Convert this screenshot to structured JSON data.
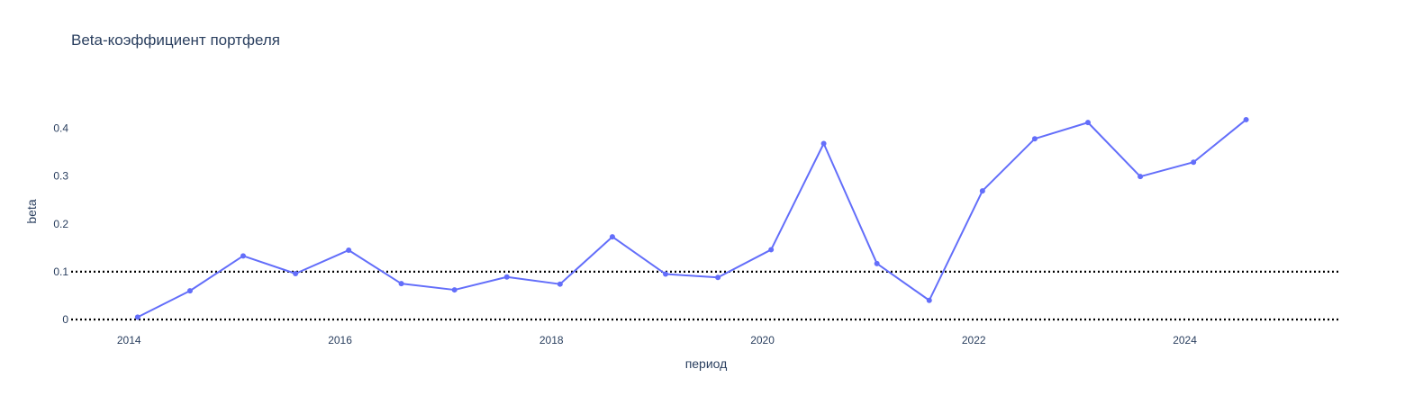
{
  "chart_data": {
    "type": "line",
    "title": "Beta-коэффициент портфеля",
    "xlabel": "период",
    "ylabel": "beta",
    "x_ticks": [
      "2014",
      "2016",
      "2018",
      "2020",
      "2022",
      "2024"
    ],
    "y_ticks": [
      "0",
      "0.1",
      "0.2",
      "0.3",
      "0.4"
    ],
    "xlim": [
      "2013-06-15",
      "2025-06-15"
    ],
    "ylim": [
      0,
      0.48
    ],
    "grid": false,
    "reference_lines": [
      {
        "value": 0.1,
        "style": "dotted",
        "color": "#000000"
      },
      {
        "value": 0,
        "style": "dotted",
        "color": "#000000"
      }
    ],
    "series": [
      {
        "color": "#636efa",
        "x": [
          "2014-01-31",
          "2014-07-31",
          "2015-01-31",
          "2015-07-31",
          "2016-01-31",
          "2016-07-31",
          "2017-01-31",
          "2017-07-31",
          "2018-01-31",
          "2018-07-31",
          "2019-01-31",
          "2019-07-31",
          "2020-01-31",
          "2020-07-31",
          "2021-01-31",
          "2021-07-31",
          "2022-01-31",
          "2022-07-31",
          "2023-01-31",
          "2023-07-31",
          "2024-01-31",
          "2024-07-31"
        ],
        "values": [
          0.005,
          0.06,
          0.133,
          0.096,
          0.145,
          0.075,
          0.062,
          0.089,
          0.074,
          0.173,
          0.095,
          0.088,
          0.146,
          0.368,
          0.117,
          0.04,
          0.269,
          0.378,
          0.412,
          0.299,
          0.329,
          0.418
        ]
      }
    ]
  }
}
